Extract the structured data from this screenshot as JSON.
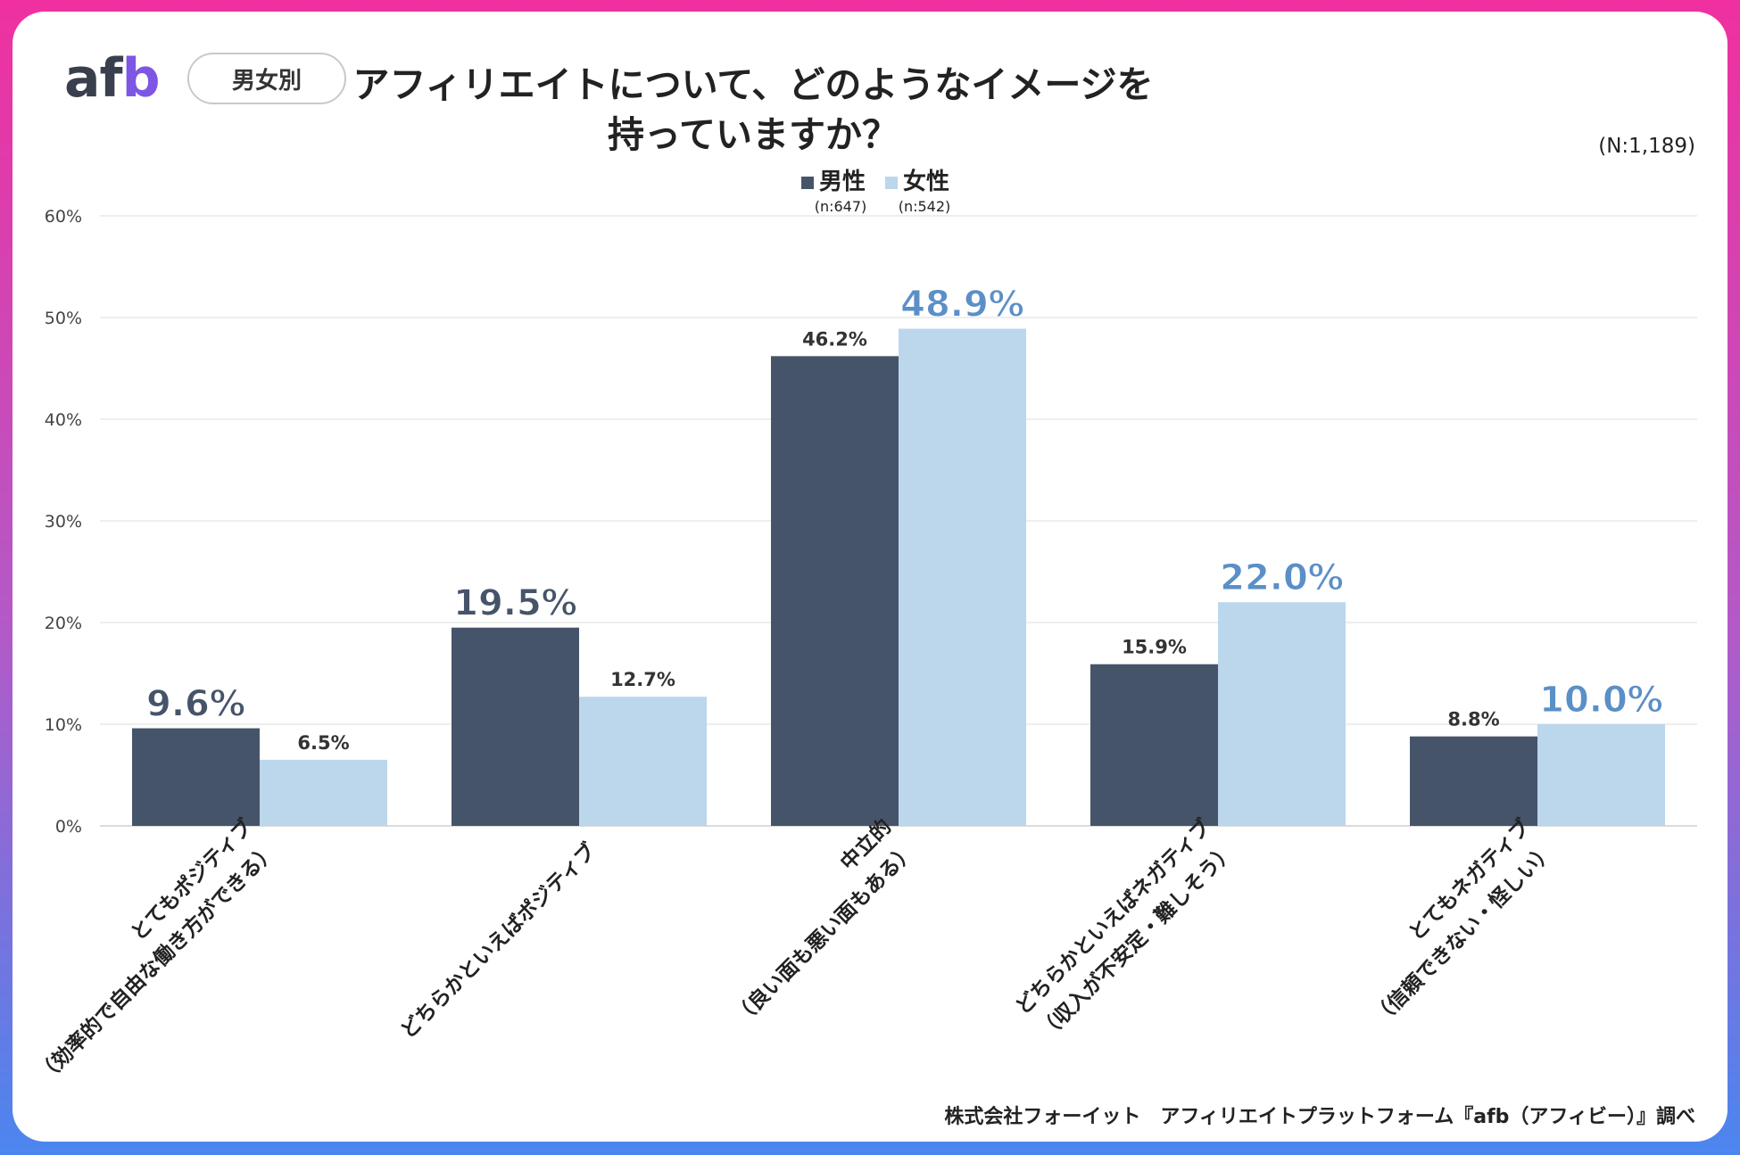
{
  "header": {
    "logo_main": "af",
    "logo_accent": "b",
    "segment_pill": "男女別",
    "title_line1": "アフィリエイトについて、どのようなイメージを",
    "title_line2": "持っていますか？",
    "sample_size": "(N:1,189)"
  },
  "footer": {
    "source": "株式会社フォーイット　アフィリエイトプラットフォーム『afb（アフィビー）』調べ"
  },
  "colors": {
    "male": "#46546a",
    "female": "#bcd6ec",
    "female_label": "#5b8fc7"
  },
  "chart_data": {
    "type": "bar",
    "title": "アフィリエイトについて、どのようなイメージを持っていますか？",
    "xlabel": "",
    "ylabel": "",
    "ylim": [
      0,
      60
    ],
    "yticks": [
      "0%",
      "10%",
      "20%",
      "30%",
      "40%",
      "50%",
      "60%"
    ],
    "grid": true,
    "legend_position": "top-center",
    "categories": [
      [
        "とてもポジティブ",
        "（効率的で自由な働き方ができる）"
      ],
      [
        "どちらかといえばポジティブ"
      ],
      [
        "中立的",
        "（良い面も悪い面もある）"
      ],
      [
        "どちらかといえばネガティブ",
        "（収入が不安定・難しそう）"
      ],
      [
        "とてもネガティブ",
        "（信頼できない・怪しい）"
      ]
    ],
    "series": [
      {
        "name": "男性",
        "sub": "(n:647)",
        "values": [
          9.6,
          19.5,
          46.2,
          15.9,
          8.8
        ],
        "labels": [
          "9.6%",
          "19.5%",
          "46.2%",
          "15.9%",
          "8.8%"
        ],
        "emphasized": [
          true,
          true,
          false,
          false,
          false
        ]
      },
      {
        "name": "女性",
        "sub": "(n:542)",
        "values": [
          6.5,
          12.7,
          48.9,
          22.0,
          10.0
        ],
        "labels": [
          "6.5%",
          "12.7%",
          "48.9%",
          "22.0%",
          "10.0%"
        ],
        "emphasized": [
          false,
          false,
          true,
          true,
          true
        ]
      }
    ]
  }
}
